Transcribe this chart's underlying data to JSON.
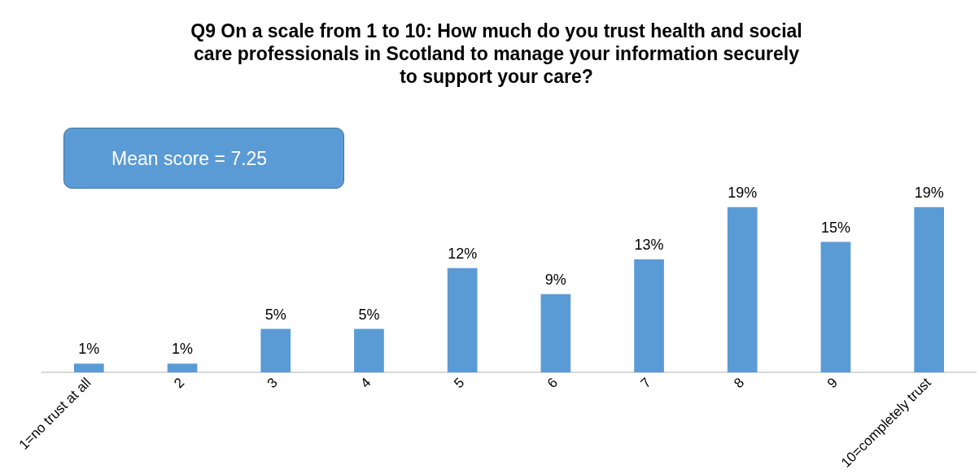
{
  "chart_data": {
    "type": "bar",
    "title": "Q9 On a scale from 1 to 10: How much do you trust health and social care professionals in Scotland to manage your information securely to support your care?",
    "categories": [
      "1=no trust at all",
      "2",
      "3",
      "4",
      "5",
      "6",
      "7",
      "8",
      "9",
      "10=completely trust"
    ],
    "values": [
      1,
      1,
      5,
      5,
      12,
      9,
      13,
      19,
      15,
      19
    ],
    "color": "#5b9bd5",
    "value_labels": [
      "1%",
      "1%",
      "5%",
      "5%",
      "12%",
      "9%",
      "13%",
      "19%",
      "15%",
      "19%"
    ],
    "annotations": [
      "Mean score = 7.25"
    ],
    "grid": false,
    "legend": false
  }
}
